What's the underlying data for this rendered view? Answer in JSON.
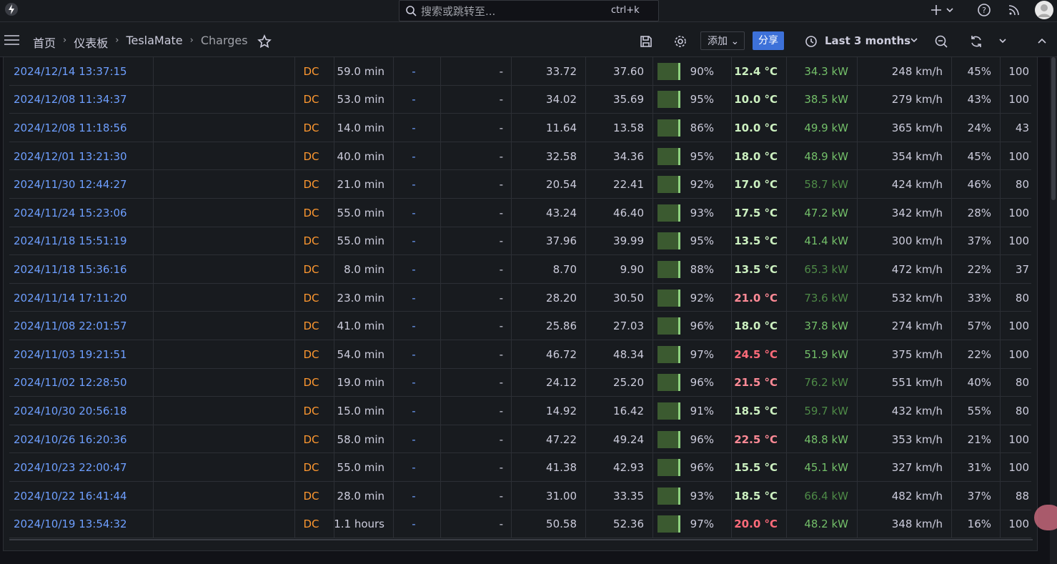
{
  "topbar": {
    "search_placeholder": "搜索或跳转至...",
    "shortcut": "ctrl+k"
  },
  "breadcrumb": {
    "items": [
      "首页",
      "仪表板",
      "TeslaMate",
      "Charges"
    ]
  },
  "toolbar": {
    "add": "添加",
    "share": "分享",
    "time_range": "Last 3 months"
  },
  "table": {
    "rows": [
      [
        "2024/12/14 13:37:15",
        "DC",
        "59.0 min",
        "-",
        "-",
        "33.72",
        "37.60",
        "90%",
        "12.4 °C",
        "34.3 kW",
        "248 km/h",
        "45%",
        "100"
      ],
      [
        "2024/12/08 11:34:37",
        "DC",
        "53.0 min",
        "-",
        "-",
        "34.02",
        "35.69",
        "95%",
        "10.0 °C",
        "38.5 kW",
        "279 km/h",
        "43%",
        "100"
      ],
      [
        "2024/12/08 11:18:56",
        "DC",
        "14.0 min",
        "-",
        "-",
        "11.64",
        "13.58",
        "86%",
        "10.0 °C",
        "49.9 kW",
        "365 km/h",
        "24%",
        "43"
      ],
      [
        "2024/12/01 13:21:30",
        "DC",
        "40.0 min",
        "-",
        "-",
        "32.58",
        "34.36",
        "95%",
        "18.0 °C",
        "48.9 kW",
        "354 km/h",
        "45%",
        "100"
      ],
      [
        "2024/11/30 12:44:27",
        "DC",
        "21.0 min",
        "-",
        "-",
        "20.54",
        "22.41",
        "92%",
        "17.0 °C",
        "58.7 kW",
        "424 km/h",
        "46%",
        "80"
      ],
      [
        "2024/11/24 15:23:06",
        "DC",
        "55.0 min",
        "-",
        "-",
        "43.24",
        "46.40",
        "93%",
        "17.5 °C",
        "47.2 kW",
        "342 km/h",
        "28%",
        "100"
      ],
      [
        "2024/11/18 15:51:19",
        "DC",
        "55.0 min",
        "-",
        "-",
        "37.96",
        "39.99",
        "95%",
        "13.5 °C",
        "41.4 kW",
        "300 km/h",
        "37%",
        "100"
      ],
      [
        "2024/11/18 15:36:16",
        "DC",
        "8.0 min",
        "-",
        "-",
        "8.70",
        "9.90",
        "88%",
        "13.5 °C",
        "65.3 kW",
        "472 km/h",
        "22%",
        "37"
      ],
      [
        "2024/11/14 17:11:20",
        "DC",
        "23.0 min",
        "-",
        "-",
        "28.20",
        "30.50",
        "92%",
        "21.0 °C",
        "73.6 kW",
        "532 km/h",
        "33%",
        "80"
      ],
      [
        "2024/11/08 22:01:57",
        "DC",
        "41.0 min",
        "-",
        "-",
        "25.86",
        "27.03",
        "96%",
        "18.0 °C",
        "37.8 kW",
        "274 km/h",
        "57%",
        "100"
      ],
      [
        "2024/11/03 19:21:51",
        "DC",
        "54.0 min",
        "-",
        "-",
        "46.72",
        "48.34",
        "97%",
        "24.5 °C",
        "51.9 kW",
        "375 km/h",
        "22%",
        "100"
      ],
      [
        "2024/11/02 12:28:50",
        "DC",
        "19.0 min",
        "-",
        "-",
        "24.12",
        "25.20",
        "96%",
        "21.5 °C",
        "76.2 kW",
        "551 km/h",
        "40%",
        "80"
      ],
      [
        "2024/10/30 20:56:18",
        "DC",
        "15.0 min",
        "-",
        "-",
        "14.92",
        "16.42",
        "91%",
        "18.5 °C",
        "59.7 kW",
        "432 km/h",
        "55%",
        "80"
      ],
      [
        "2024/10/26 16:20:36",
        "DC",
        "58.0 min",
        "-",
        "-",
        "47.22",
        "49.24",
        "96%",
        "22.5 °C",
        "48.8 kW",
        "353 km/h",
        "21%",
        "100"
      ],
      [
        "2024/10/23 22:00:47",
        "DC",
        "55.0 min",
        "-",
        "-",
        "41.38",
        "42.93",
        "96%",
        "15.5 °C",
        "45.1 kW",
        "327 km/h",
        "31%",
        "100"
      ],
      [
        "2024/10/22 16:41:44",
        "DC",
        "28.0 min",
        "-",
        "-",
        "31.00",
        "33.35",
        "93%",
        "18.5 °C",
        "66.4 kW",
        "482 km/h",
        "37%",
        "88"
      ],
      [
        "2024/10/19 13:54:32",
        "DC",
        "1.1 hours",
        "-",
        "-",
        "50.58",
        "52.36",
        "97%",
        "20.0 °C",
        "48.2 kW",
        "348 km/h",
        "16%",
        "100"
      ]
    ],
    "temperature_colors": [
      "#ccf0c0",
      "#ccf0c0",
      "#ccf0c0",
      "#ccf0c0",
      "#ccf0c0",
      "#ccf0c0",
      "#ccf0c0",
      "#ccf0c0",
      "#ff8a96",
      "#ccf0c0",
      "#ff6b7a",
      "#ff8a96",
      "#ccf0c0",
      "#ff8a96",
      "#ccf0c0",
      "#ccf0c0",
      "#ff6b7a"
    ],
    "power_colors": [
      "#73bf69",
      "#73bf69",
      "#73bf69",
      "#73bf69",
      "#4e8a47",
      "#73bf69",
      "#73bf69",
      "#4e8a47",
      "#4e8a47",
      "#73bf69",
      "#73bf69",
      "#4e8a47",
      "#4e8a47",
      "#73bf69",
      "#73bf69",
      "#4e8a47",
      "#73bf69"
    ]
  }
}
